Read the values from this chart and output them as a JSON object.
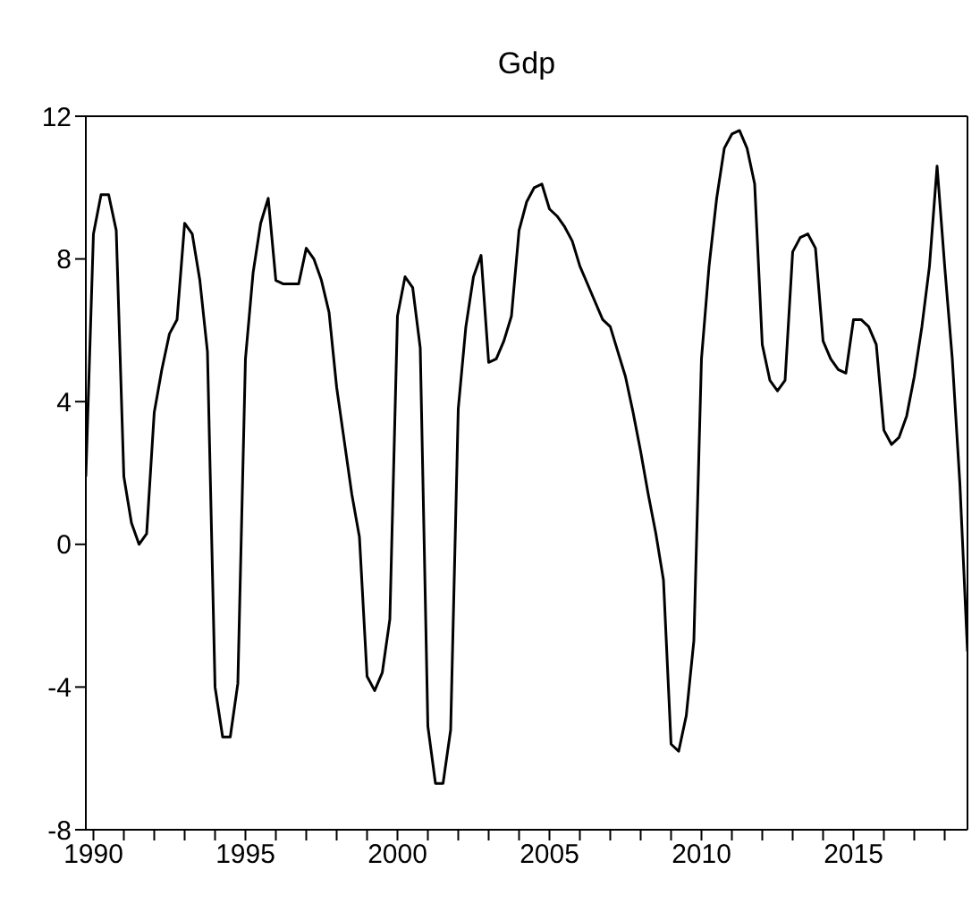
{
  "chart_data": {
    "type": "line",
    "title": "Gdp",
    "x": [
      1989.75,
      1990,
      1990.25,
      1990.5,
      1990.75,
      1991,
      1991.25,
      1991.5,
      1991.75,
      1992,
      1992.25,
      1992.5,
      1992.75,
      1993,
      1993.25,
      1993.5,
      1993.75,
      1994,
      1994.25,
      1994.5,
      1994.75,
      1995,
      1995.25,
      1995.5,
      1995.75,
      1996,
      1996.25,
      1996.5,
      1996.75,
      1997,
      1997.25,
      1997.5,
      1997.75,
      1998,
      1998.25,
      1998.5,
      1998.75,
      1999,
      1999.25,
      1999.5,
      1999.75,
      2000,
      2000.25,
      2000.5,
      2000.75,
      2001,
      2001.25,
      2001.5,
      2001.75,
      2002,
      2002.25,
      2002.5,
      2002.75,
      2003,
      2003.25,
      2003.5,
      2003.75,
      2004,
      2004.25,
      2004.5,
      2004.75,
      2005,
      2005.25,
      2005.5,
      2005.75,
      2006,
      2006.25,
      2006.5,
      2006.75,
      2007,
      2007.25,
      2007.5,
      2007.75,
      2008,
      2008.25,
      2008.5,
      2008.75,
      2009,
      2009.25,
      2009.5,
      2009.75,
      2010,
      2010.25,
      2010.5,
      2010.75,
      2011,
      2011.25,
      2011.5,
      2011.75,
      2012,
      2012.25,
      2012.5,
      2012.75,
      2013,
      2013.25,
      2013.5,
      2013.75,
      2014,
      2014.25,
      2014.5,
      2014.75,
      2015,
      2015.25,
      2015.5,
      2015.75,
      2016,
      2016.25,
      2016.5,
      2016.75,
      2017,
      2017.25,
      2017.5,
      2017.75,
      2018,
      2018.25,
      2018.5,
      2018.75
    ],
    "series": [
      {
        "color": "#000000",
        "values": [
          1.9,
          8.7,
          9.8,
          9.8,
          8.8,
          1.9,
          0.6,
          0.0,
          0.3,
          3.7,
          4.9,
          5.9,
          6.3,
          9.0,
          8.7,
          7.4,
          5.4,
          -4.0,
          -5.4,
          -5.4,
          -3.9,
          5.2,
          7.6,
          9.0,
          9.7,
          7.4,
          7.3,
          7.3,
          7.3,
          8.3,
          8.0,
          7.4,
          6.5,
          4.4,
          2.9,
          1.4,
          0.2,
          -3.7,
          -4.1,
          -3.6,
          -2.1,
          6.4,
          7.5,
          7.2,
          5.5,
          -5.1,
          -6.7,
          -6.7,
          -5.2,
          3.8,
          6.1,
          7.5,
          8.1,
          5.1,
          5.2,
          5.7,
          6.4,
          8.8,
          9.6,
          10.0,
          10.1,
          9.4,
          9.2,
          8.9,
          8.5,
          7.8,
          7.3,
          6.8,
          6.3,
          6.1,
          5.4,
          4.7,
          3.7,
          2.6,
          1.4,
          0.3,
          -1.0,
          -5.6,
          -5.8,
          -4.8,
          -2.7,
          5.2,
          7.8,
          9.7,
          11.1,
          11.5,
          11.6,
          11.1,
          10.1,
          5.6,
          4.6,
          4.3,
          4.6,
          8.2,
          8.6,
          8.7,
          8.3,
          5.7,
          5.2,
          4.9,
          4.8,
          6.3,
          6.3,
          6.1,
          5.6,
          3.2,
          2.8,
          3.0,
          3.6,
          4.7,
          6.1,
          7.8,
          10.6,
          7.8,
          5.2,
          1.7,
          -3.0
        ]
      }
    ],
    "xlim": [
      1989.75,
      2018.75
    ],
    "xticks": [
      1990,
      {
        "value": 1991,
        "label": null
      },
      {
        "value": 1992,
        "label": null
      },
      {
        "value": 1993,
        "label": null
      },
      {
        "value": 1994,
        "label": null
      },
      1995,
      {
        "value": 1996,
        "label": null
      },
      {
        "value": 1997,
        "label": null
      },
      {
        "value": 1998,
        "label": null
      },
      {
        "value": 1999,
        "label": null
      },
      2000,
      {
        "value": 2001,
        "label": null
      },
      {
        "value": 2002,
        "label": null
      },
      {
        "value": 2003,
        "label": null
      },
      {
        "value": 2004,
        "label": null
      },
      2005,
      {
        "value": 2006,
        "label": null
      },
      {
        "value": 2007,
        "label": null
      },
      {
        "value": 2008,
        "label": null
      },
      {
        "value": 2009,
        "label": null
      },
      2010,
      {
        "value": 2011,
        "label": null
      },
      {
        "value": 2012,
        "label": null
      },
      {
        "value": 2013,
        "label": null
      },
      {
        "value": 2014,
        "label": null
      },
      2015,
      {
        "value": 2016,
        "label": null
      },
      {
        "value": 2017,
        "label": null
      },
      {
        "value": 2018,
        "label": null
      }
    ],
    "ylim": [
      -8,
      12
    ],
    "yticks": [
      -8,
      -4,
      0,
      4,
      8,
      12
    ]
  }
}
